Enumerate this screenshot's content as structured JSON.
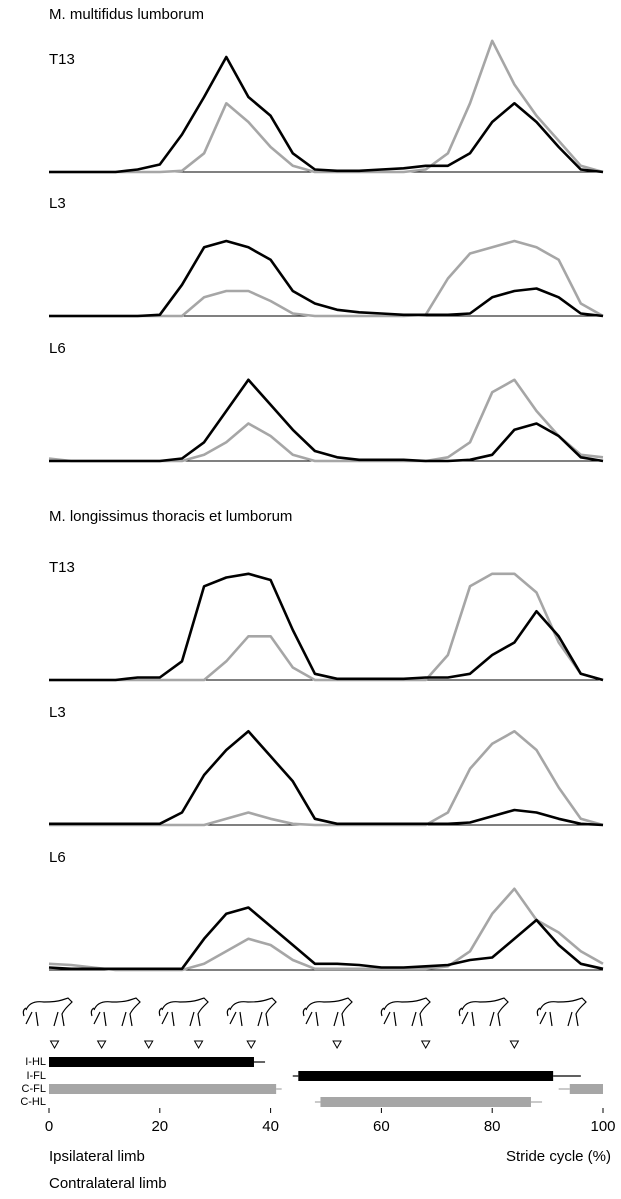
{
  "headings": [
    "M. multifidus lumborum",
    "M. longissimus thoracis et lumborum"
  ],
  "legend": [
    {
      "name": "Ipsilateral limb",
      "color": "#000000"
    },
    {
      "name": "Contralateral limb",
      "color": "#a6a6a6"
    }
  ],
  "chart_data": [
    {
      "type": "line",
      "title": "T13",
      "xlim": [
        0,
        100
      ],
      "ylim": [
        0,
        1
      ],
      "x": [
        0,
        4,
        8,
        12,
        16,
        20,
        24,
        28,
        32,
        36,
        40,
        44,
        48,
        52,
        56,
        60,
        64,
        68,
        72,
        76,
        80,
        84,
        88,
        92,
        96,
        100
      ],
      "series": [
        {
          "color": "#a6a6a6",
          "values": [
            0,
            0,
            0,
            0,
            0,
            0,
            0.01,
            0.15,
            0.55,
            0.4,
            0.2,
            0.05,
            0,
            0,
            0,
            0,
            0,
            0.02,
            0.15,
            0.55,
            1.05,
            0.7,
            0.45,
            0.25,
            0.05,
            0
          ]
        },
        {
          "color": "#000000",
          "values": [
            0,
            0,
            0,
            0,
            0.02,
            0.06,
            0.3,
            0.6,
            0.92,
            0.6,
            0.45,
            0.15,
            0.02,
            0.01,
            0.01,
            0.02,
            0.03,
            0.05,
            0.05,
            0.15,
            0.4,
            0.55,
            0.4,
            0.2,
            0.02,
            0
          ]
        }
      ]
    },
    {
      "type": "line",
      "title": "L3",
      "xlim": [
        0,
        100
      ],
      "ylim": [
        0,
        1
      ],
      "x": [
        0,
        4,
        8,
        12,
        16,
        20,
        24,
        28,
        32,
        36,
        40,
        44,
        48,
        52,
        56,
        60,
        64,
        68,
        72,
        76,
        80,
        84,
        88,
        92,
        96,
        100
      ],
      "series": [
        {
          "color": "#a6a6a6",
          "values": [
            0,
            0,
            0,
            0,
            0,
            0,
            0,
            0.15,
            0.2,
            0.2,
            0.12,
            0.02,
            0,
            0,
            0,
            0,
            0,
            0.01,
            0.3,
            0.5,
            0.55,
            0.6,
            0.55,
            0.45,
            0.1,
            0
          ]
        },
        {
          "color": "#000000",
          "values": [
            0,
            0,
            0,
            0,
            0,
            0.01,
            0.25,
            0.55,
            0.6,
            0.55,
            0.45,
            0.2,
            0.1,
            0.05,
            0.03,
            0.02,
            0.01,
            0.01,
            0.01,
            0.02,
            0.15,
            0.2,
            0.22,
            0.15,
            0.02,
            0
          ]
        }
      ]
    },
    {
      "type": "line",
      "title": "L6",
      "xlim": [
        0,
        100
      ],
      "ylim": [
        0,
        1
      ],
      "x": [
        0,
        4,
        8,
        12,
        16,
        20,
        24,
        28,
        32,
        36,
        40,
        44,
        48,
        52,
        56,
        60,
        64,
        68,
        72,
        76,
        80,
        84,
        88,
        92,
        96,
        100
      ],
      "series": [
        {
          "color": "#a6a6a6",
          "values": [
            0.02,
            0,
            0,
            0,
            0,
            0,
            0,
            0.05,
            0.15,
            0.3,
            0.2,
            0.05,
            0,
            0,
            0,
            0,
            0,
            0,
            0.03,
            0.15,
            0.55,
            0.65,
            0.4,
            0.2,
            0.05,
            0.03
          ]
        },
        {
          "color": "#000000",
          "values": [
            0,
            0,
            0,
            0,
            0,
            0,
            0.02,
            0.15,
            0.4,
            0.65,
            0.45,
            0.25,
            0.08,
            0.03,
            0.01,
            0.01,
            0.01,
            0,
            0,
            0.01,
            0.05,
            0.25,
            0.3,
            0.2,
            0.03,
            0
          ]
        }
      ]
    },
    {
      "type": "line",
      "title": "T13",
      "xlim": [
        0,
        100
      ],
      "ylim": [
        0,
        1
      ],
      "x": [
        0,
        4,
        8,
        12,
        16,
        20,
        24,
        28,
        32,
        36,
        40,
        44,
        48,
        52,
        56,
        60,
        64,
        68,
        72,
        76,
        80,
        84,
        88,
        92,
        96,
        100
      ],
      "series": [
        {
          "color": "#a6a6a6",
          "values": [
            0,
            0,
            0,
            0,
            0,
            0,
            0,
            0,
            0.15,
            0.35,
            0.35,
            0.1,
            0,
            0,
            0,
            0,
            0,
            0,
            0.2,
            0.75,
            0.85,
            0.85,
            0.7,
            0.3,
            0.05,
            0
          ]
        },
        {
          "color": "#000000",
          "values": [
            0,
            0,
            0,
            0,
            0.02,
            0.02,
            0.15,
            0.75,
            0.82,
            0.85,
            0.8,
            0.4,
            0.05,
            0.01,
            0.01,
            0.01,
            0.01,
            0.02,
            0.02,
            0.05,
            0.2,
            0.3,
            0.55,
            0.35,
            0.05,
            0
          ]
        }
      ]
    },
    {
      "type": "line",
      "title": "L3",
      "xlim": [
        0,
        100
      ],
      "ylim": [
        0,
        1
      ],
      "x": [
        0,
        4,
        8,
        12,
        16,
        20,
        24,
        28,
        32,
        36,
        40,
        44,
        48,
        52,
        56,
        60,
        64,
        68,
        72,
        76,
        80,
        84,
        88,
        92,
        96,
        100
      ],
      "series": [
        {
          "color": "#a6a6a6",
          "values": [
            0,
            0,
            0,
            0,
            0,
            0,
            0,
            0,
            0.05,
            0.1,
            0.05,
            0.01,
            0,
            0,
            0,
            0,
            0,
            0,
            0.1,
            0.45,
            0.65,
            0.75,
            0.6,
            0.3,
            0.05,
            0
          ]
        },
        {
          "color": "#000000",
          "values": [
            0.01,
            0.01,
            0.01,
            0.01,
            0.01,
            0.01,
            0.1,
            0.4,
            0.6,
            0.75,
            0.55,
            0.35,
            0.05,
            0.01,
            0.01,
            0.01,
            0.01,
            0.01,
            0.01,
            0.02,
            0.07,
            0.12,
            0.1,
            0.05,
            0.01,
            0
          ]
        }
      ]
    },
    {
      "type": "line",
      "title": "L6",
      "xlim": [
        0,
        100
      ],
      "ylim": [
        0,
        1
      ],
      "x": [
        0,
        4,
        8,
        12,
        16,
        20,
        24,
        28,
        32,
        36,
        40,
        44,
        48,
        52,
        56,
        60,
        64,
        68,
        72,
        76,
        80,
        84,
        88,
        92,
        96,
        100
      ],
      "series": [
        {
          "color": "#a6a6a6",
          "values": [
            0.05,
            0.04,
            0.02,
            0,
            0,
            0,
            0,
            0.05,
            0.15,
            0.25,
            0.2,
            0.08,
            0.01,
            0.01,
            0.01,
            0.01,
            0.01,
            0.01,
            0.03,
            0.15,
            0.45,
            0.65,
            0.4,
            0.3,
            0.15,
            0.05
          ]
        },
        {
          "color": "#000000",
          "values": [
            0.02,
            0.01,
            0.01,
            0.01,
            0.01,
            0.01,
            0.01,
            0.25,
            0.45,
            0.5,
            0.35,
            0.2,
            0.05,
            0.05,
            0.04,
            0.02,
            0.02,
            0.03,
            0.04,
            0.08,
            0.1,
            0.25,
            0.4,
            0.2,
            0.05,
            0.01
          ]
        }
      ]
    },
    {
      "type": "gait",
      "xlim": [
        0,
        100
      ],
      "xticks": [
        0,
        20,
        40,
        60,
        80,
        100
      ],
      "xlabel": "Stride cycle (%)",
      "categories": [
        "I-HL",
        "I-FL",
        "C-FL",
        "C-HL"
      ],
      "row_colors": [
        "#000000",
        "#000000",
        "#a6a6a6",
        "#a6a6a6"
      ],
      "events": [
        1,
        9.5,
        18,
        27,
        36.5,
        52,
        68,
        84
      ],
      "bars": [
        {
          "row": 0,
          "start": 0,
          "end": 37,
          "start_error": null,
          "end_error": 2
        },
        {
          "row": 1,
          "start": 45,
          "end": 91,
          "start_error": 1,
          "end_error": 5
        },
        {
          "row": 2,
          "start": 0,
          "end": 41,
          "start_error": null,
          "end_error": 1
        },
        {
          "row": 2,
          "start": 94,
          "end": 100,
          "start_error": 2,
          "end_error": null
        },
        {
          "row": 3,
          "start": 49,
          "end": 87,
          "start_error": 1,
          "end_error": 2
        }
      ]
    }
  ]
}
